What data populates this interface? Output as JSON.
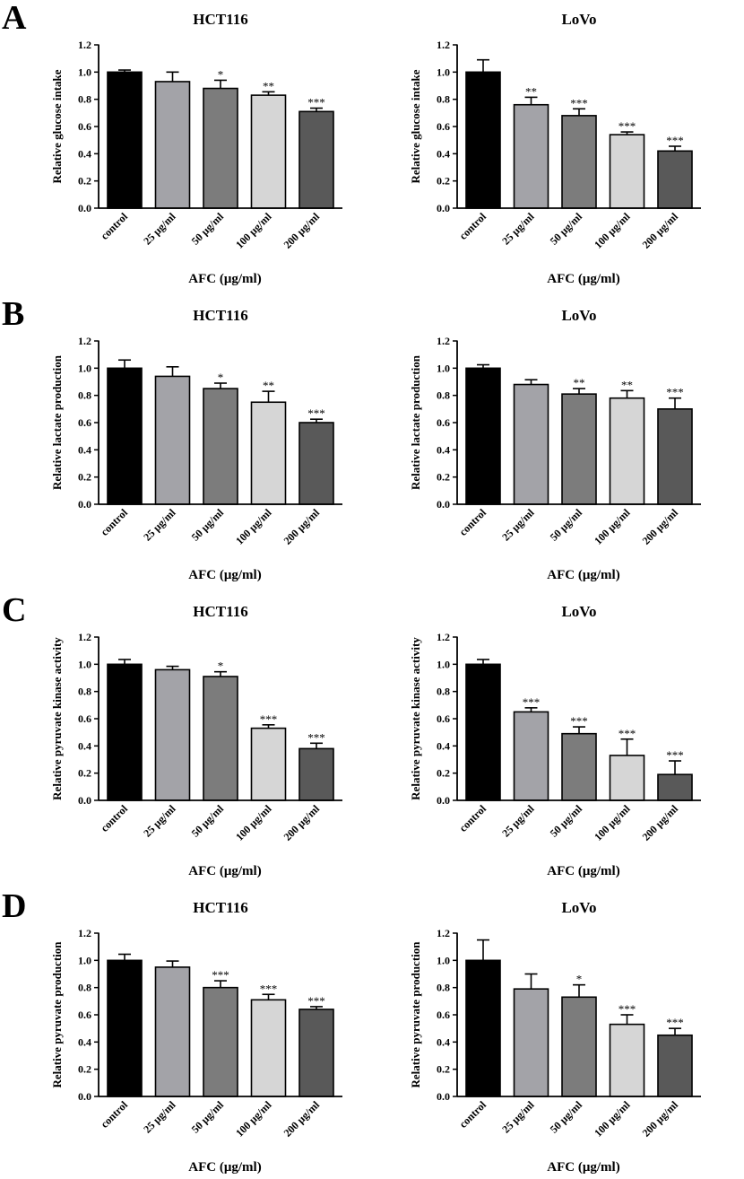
{
  "figure": {
    "panel_letters": [
      "A",
      "B",
      "C",
      "D"
    ]
  },
  "colors": [
    "#000000",
    "#a3a3a8",
    "#7c7c7c",
    "#d6d6d6",
    "#595959"
  ],
  "chart_data": [
    {
      "panel": "A",
      "type": "bar",
      "title": "HCT116",
      "xlabel": "AFC (μg/ml)",
      "ylabel": "Relative glucose intake",
      "categories": [
        "control",
        "25 μg/ml",
        "50 μg/ml",
        "100 μg/ml",
        "200 μg/ml"
      ],
      "values": [
        1.0,
        0.93,
        0.88,
        0.83,
        0.71
      ],
      "errors": [
        0.015,
        0.07,
        0.06,
        0.025,
        0.025
      ],
      "significance": [
        "",
        "",
        "*",
        "**",
        "***"
      ],
      "ylim": [
        0,
        1.2
      ],
      "yticks": [
        "0.0",
        "0.2",
        "0.4",
        "0.6",
        "0.8",
        "1.0",
        "1.2"
      ]
    },
    {
      "panel": "A",
      "type": "bar",
      "title": "LoVo",
      "xlabel": "AFC (μg/ml)",
      "ylabel": "Relative glucose intake",
      "categories": [
        "control",
        "25 μg/ml",
        "50 μg/ml",
        "100 μg/ml",
        "200 μg/ml"
      ],
      "values": [
        1.0,
        0.76,
        0.68,
        0.54,
        0.42
      ],
      "errors": [
        0.09,
        0.055,
        0.05,
        0.02,
        0.035
      ],
      "significance": [
        "",
        "**",
        "***",
        "***",
        "***"
      ],
      "ylim": [
        0,
        1.2
      ],
      "yticks": [
        "0.0",
        "0.2",
        "0.4",
        "0.6",
        "0.8",
        "1.0",
        "1.2"
      ]
    },
    {
      "panel": "B",
      "type": "bar",
      "title": "HCT116",
      "xlabel": "AFC (μg/ml)",
      "ylabel": "Relative lactate production",
      "categories": [
        "control",
        "25 μg/ml",
        "50 μg/ml",
        "100 μg/ml",
        "200 μg/ml"
      ],
      "values": [
        1.0,
        0.94,
        0.85,
        0.75,
        0.6
      ],
      "errors": [
        0.06,
        0.07,
        0.04,
        0.08,
        0.025
      ],
      "significance": [
        "",
        "",
        "*",
        "**",
        "***"
      ],
      "ylim": [
        0,
        1.2
      ],
      "yticks": [
        "0.0",
        "0.2",
        "0.4",
        "0.6",
        "0.8",
        "1.0",
        "1.2"
      ]
    },
    {
      "panel": "B",
      "type": "bar",
      "title": "LoVo",
      "xlabel": "AFC (μg/ml)",
      "ylabel": "Relative lactate production",
      "categories": [
        "control",
        "25 μg/ml",
        "50 μg/ml",
        "100 μg/ml",
        "200 μg/ml"
      ],
      "values": [
        1.0,
        0.88,
        0.81,
        0.78,
        0.7
      ],
      "errors": [
        0.025,
        0.035,
        0.04,
        0.055,
        0.08
      ],
      "significance": [
        "",
        "",
        "**",
        "**",
        "***"
      ],
      "ylim": [
        0,
        1.2
      ],
      "yticks": [
        "0.0",
        "0.2",
        "0.4",
        "0.6",
        "0.8",
        "1.0",
        "1.2"
      ]
    },
    {
      "panel": "C",
      "type": "bar",
      "title": "HCT116",
      "xlabel": "AFC (μg/ml)",
      "ylabel": "Relative pyruvate kinase activity",
      "categories": [
        "control",
        "25 μg/ml",
        "50 μg/ml",
        "100 μg/ml",
        "200 μg/ml"
      ],
      "values": [
        1.0,
        0.96,
        0.91,
        0.53,
        0.38
      ],
      "errors": [
        0.035,
        0.025,
        0.035,
        0.025,
        0.04
      ],
      "significance": [
        "",
        "",
        "*",
        "***",
        "***"
      ],
      "ylim": [
        0,
        1.2
      ],
      "yticks": [
        "0.0",
        "0.2",
        "0.4",
        "0.6",
        "0.8",
        "1.0",
        "1.2"
      ]
    },
    {
      "panel": "C",
      "type": "bar",
      "title": "LoVo",
      "xlabel": "AFC (μg/ml)",
      "ylabel": "Relative pyruvate kinase activity",
      "categories": [
        "control",
        "25 μg/ml",
        "50 μg/ml",
        "100 μg/ml",
        "200 μg/ml"
      ],
      "values": [
        1.0,
        0.65,
        0.49,
        0.33,
        0.19
      ],
      "errors": [
        0.035,
        0.03,
        0.05,
        0.12,
        0.1
      ],
      "significance": [
        "",
        "***",
        "***",
        "***",
        "***"
      ],
      "ylim": [
        0,
        1.2
      ],
      "yticks": [
        "0.0",
        "0.2",
        "0.4",
        "0.6",
        "0.8",
        "1.0",
        "1.2"
      ]
    },
    {
      "panel": "D",
      "type": "bar",
      "title": "HCT116",
      "xlabel": "AFC (μg/ml)",
      "ylabel": "Relative pyruvate production",
      "categories": [
        "control",
        "25 μg/ml",
        "50 μg/ml",
        "100 μg/ml",
        "200 μg/ml"
      ],
      "values": [
        1.0,
        0.95,
        0.8,
        0.71,
        0.64
      ],
      "errors": [
        0.045,
        0.045,
        0.05,
        0.04,
        0.02
      ],
      "significance": [
        "",
        "",
        "***",
        "***",
        "***"
      ],
      "ylim": [
        0,
        1.2
      ],
      "yticks": [
        "0.0",
        "0.2",
        "0.4",
        "0.6",
        "0.8",
        "1.0",
        "1.2"
      ]
    },
    {
      "panel": "D",
      "type": "bar",
      "title": "LoVo",
      "xlabel": "AFC (μg/ml)",
      "ylabel": "Relative pyruvate production",
      "categories": [
        "control",
        "25 μg/ml",
        "50 μg/ml",
        "100 μg/ml",
        "200 μg/ml"
      ],
      "values": [
        1.0,
        0.79,
        0.73,
        0.53,
        0.45
      ],
      "errors": [
        0.15,
        0.11,
        0.09,
        0.07,
        0.05
      ],
      "significance": [
        "",
        "",
        "*",
        "***",
        "***"
      ],
      "ylim": [
        0,
        1.2
      ],
      "yticks": [
        "0.0",
        "0.2",
        "0.4",
        "0.6",
        "0.8",
        "1.0",
        "1.2"
      ]
    }
  ]
}
